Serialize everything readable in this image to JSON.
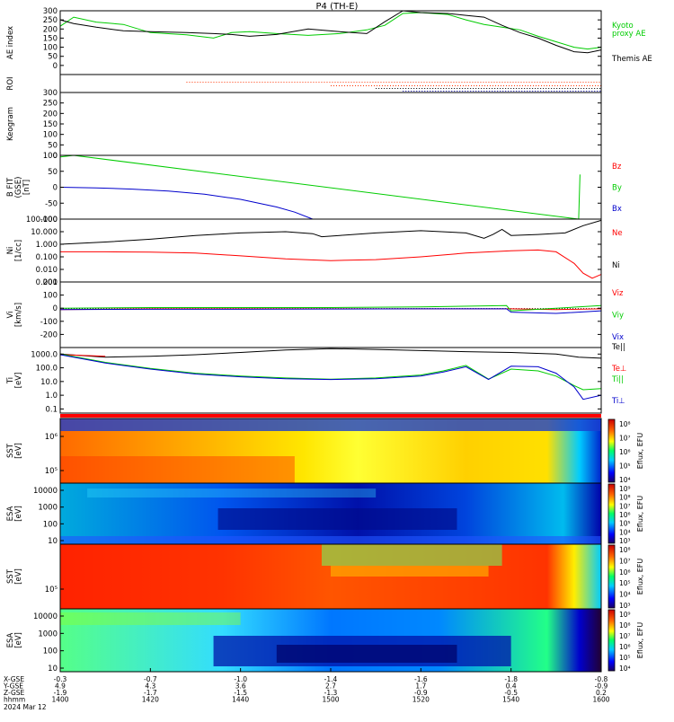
{
  "title": "P4 (TH-E)",
  "date_label": "2024 Mar 12",
  "chart_data": [
    {
      "type": "line",
      "id": "ae",
      "ylabel": "AE index",
      "ylim": [
        -50,
        300
      ],
      "yticks": [
        "300",
        "250",
        "200",
        "150",
        "100",
        "50",
        "0"
      ],
      "ytick_values": [
        300,
        250,
        200,
        150,
        100,
        50,
        0
      ],
      "xlim": [
        0,
        120
      ],
      "series": [
        {
          "name": "Kyoto\nproxy AE",
          "color": "#00cc00",
          "x": [
            0,
            3,
            8,
            14,
            20,
            28,
            34,
            38,
            42,
            48,
            55,
            62,
            68,
            72,
            76,
            80,
            86,
            90,
            94,
            98,
            102,
            106,
            110,
            114,
            117,
            120
          ],
          "y": [
            215,
            265,
            238,
            225,
            180,
            168,
            150,
            180,
            185,
            175,
            165,
            175,
            195,
            220,
            285,
            290,
            280,
            250,
            225,
            210,
            195,
            160,
            130,
            100,
            90,
            100
          ]
        },
        {
          "name": "Themis AE",
          "color": "#000000",
          "x": [
            0,
            3,
            8,
            14,
            20,
            28,
            34,
            38,
            42,
            48,
            55,
            62,
            68,
            72,
            76,
            80,
            86,
            90,
            94,
            98,
            102,
            106,
            110,
            114,
            117,
            120
          ],
          "y": [
            250,
            230,
            210,
            190,
            185,
            180,
            175,
            170,
            160,
            170,
            200,
            185,
            175,
            240,
            300,
            290,
            285,
            275,
            265,
            220,
            180,
            150,
            110,
            75,
            70,
            85
          ]
        }
      ]
    },
    {
      "type": "scatter",
      "id": "roi",
      "ylabel": "ROI"
    },
    {
      "type": "heatmap",
      "id": "keogram",
      "ylabel": "Keogram",
      "yticks": [
        "300",
        "250",
        "200",
        "150",
        "100",
        "50",
        "0"
      ],
      "ytick_values": [
        300,
        250,
        200,
        150,
        100,
        50,
        0
      ],
      "ylim": [
        0,
        300
      ]
    },
    {
      "type": "line",
      "id": "bfield",
      "ylabel": "B FIT\n(GSE)\n[nT]",
      "ylim": [
        -100,
        100
      ],
      "yticks": [
        "100",
        "50",
        "0",
        "-50",
        "-100"
      ],
      "ytick_values": [
        100,
        50,
        0,
        -50,
        -100
      ],
      "series": [
        {
          "name": "Bz",
          "color": "#ff0000",
          "x": [],
          "y": []
        },
        {
          "name": "By",
          "color": "#00cc00",
          "x": [
            0,
            3,
            115,
            115.3
          ],
          "y": [
            95,
            100,
            -100,
            40
          ]
        },
        {
          "name": "Bx",
          "color": "#0000cc",
          "x": [
            0,
            8,
            16,
            24,
            32,
            40,
            48,
            52,
            56
          ],
          "y": [
            0,
            -2,
            -6,
            -12,
            -22,
            -38,
            -62,
            -78,
            -100
          ]
        }
      ]
    },
    {
      "type": "line",
      "id": "density",
      "ylabel": "Ni\n[1/cc]",
      "scale": "log",
      "ylim": [
        0.001,
        100
      ],
      "yticks": [
        "100.000",
        "10.000",
        "1.000",
        "0.100",
        "0.010",
        "0.001"
      ],
      "ytick_values": [
        100,
        10,
        1,
        0.1,
        0.01,
        0.001
      ],
      "series": [
        {
          "name": "Ne",
          "color": "#ff0000",
          "x": [
            0,
            10,
            20,
            30,
            40,
            50,
            60,
            70,
            80,
            90,
            100,
            106,
            110,
            114,
            116,
            118,
            120
          ],
          "y": [
            0.25,
            0.25,
            0.24,
            0.2,
            0.12,
            0.07,
            0.05,
            0.06,
            0.1,
            0.2,
            0.3,
            0.35,
            0.25,
            0.03,
            0.005,
            0.002,
            0.004
          ]
        },
        {
          "name": "Ni",
          "color": "#000000",
          "x": [
            0,
            10,
            20,
            30,
            40,
            50,
            56,
            58,
            62,
            70,
            80,
            90,
            94,
            96,
            98,
            100,
            106,
            112,
            116,
            120
          ],
          "y": [
            1.0,
            1.5,
            2.5,
            5,
            8,
            10,
            7,
            4,
            5,
            8,
            12,
            8,
            3,
            6,
            15,
            5,
            6,
            8,
            30,
            80
          ]
        }
      ]
    },
    {
      "type": "line",
      "id": "velocity",
      "ylabel": "Vi\n[km/s]",
      "ylim": [
        -300,
        200
      ],
      "yticks": [
        "200",
        "100",
        "0",
        "-100",
        "-200"
      ],
      "ytick_values": [
        200,
        100,
        0,
        -100,
        -200
      ],
      "series": [
        {
          "name": "Viz",
          "color": "#ff0000",
          "x": [
            0,
            20,
            40,
            60,
            80,
            100,
            110,
            120
          ],
          "y": [
            -10,
            -5,
            -5,
            -5,
            -5,
            -5,
            -10,
            -5
          ]
        },
        {
          "name": "Viy",
          "color": "#00cc00",
          "x": [
            0,
            20,
            40,
            60,
            80,
            99,
            100,
            110,
            120
          ],
          "y": [
            0,
            5,
            5,
            5,
            10,
            20,
            -20,
            0,
            20
          ]
        },
        {
          "name": "Vix",
          "color": "#0000cc",
          "x": [
            0,
            20,
            40,
            60,
            80,
            99,
            100,
            110,
            120
          ],
          "y": [
            -10,
            -8,
            -8,
            -6,
            -5,
            -5,
            -30,
            -40,
            -20
          ]
        }
      ]
    },
    {
      "type": "line",
      "id": "temperature",
      "ylabel": "Ti\n[eV]",
      "scale": "log",
      "ylim": [
        0.05,
        3000
      ],
      "yticks": [
        "1000.0",
        "100.0",
        "10.0",
        "1.0",
        "0.1"
      ],
      "ytick_values": [
        1000,
        100,
        10,
        1,
        0.1
      ],
      "series": [
        {
          "name": "Te||",
          "color": "#000000",
          "x": [
            0,
            10,
            20,
            30,
            40,
            50,
            60,
            70,
            80,
            90,
            100,
            110,
            115,
            120
          ],
          "y": [
            1000,
            600,
            700,
            900,
            1300,
            2000,
            2500,
            2200,
            1800,
            1500,
            1300,
            1000,
            600,
            500
          ]
        },
        {
          "name": "Te⊥",
          "color": "#ff0000",
          "x": [
            0,
            5,
            10
          ],
          "y": [
            900,
            800,
            700
          ]
        },
        {
          "name": "Ti||",
          "color": "#00cc00",
          "x": [
            0,
            10,
            20,
            30,
            40,
            50,
            60,
            70,
            80,
            85,
            90,
            95,
            100,
            106,
            110,
            114,
            116,
            120
          ],
          "y": [
            1000,
            250,
            90,
            40,
            25,
            18,
            15,
            18,
            30,
            60,
            150,
            15,
            80,
            60,
            25,
            5,
            2.5,
            3
          ]
        },
        {
          "name": "Ti⊥",
          "color": "#0000cc",
          "x": [
            0,
            10,
            20,
            30,
            40,
            50,
            60,
            70,
            80,
            85,
            90,
            95,
            100,
            106,
            110,
            114,
            116,
            120
          ],
          "y": [
            900,
            220,
            80,
            35,
            22,
            16,
            14,
            16,
            25,
            50,
            120,
            14,
            130,
            120,
            40,
            4,
            0.5,
            1
          ]
        }
      ]
    },
    {
      "type": "heatmap",
      "id": "sst-ion",
      "ylabel": "SST\n[eV]",
      "yticks": [
        "10⁶",
        "10⁵"
      ],
      "ytick_values": [
        1000000,
        100000
      ],
      "colorbar": {
        "label": "Eflux, EFU",
        "ticks": [
          "10⁸",
          "10⁷",
          "10⁶",
          "10⁵",
          "10⁴"
        ]
      }
    },
    {
      "type": "heatmap",
      "id": "esa-ion",
      "ylabel": "ESA\n[eV]",
      "yticks": [
        "10000",
        "1000",
        "100",
        "10"
      ],
      "ytick_values": [
        10000,
        1000,
        100,
        10
      ],
      "colorbar": {
        "label": "Eflux, EFU",
        "ticks": [
          "10⁹",
          "10⁸",
          "10⁷",
          "10⁶",
          "10⁵",
          "10⁴",
          "10³"
        ]
      }
    },
    {
      "type": "heatmap",
      "id": "sst-elec",
      "ylabel": "SST\n[eV]",
      "yticks": [
        "10⁵"
      ],
      "ytick_values": [
        100000
      ],
      "colorbar": {
        "label": "Eflux, EFU",
        "ticks": [
          "10⁸",
          "10⁷",
          "10⁶",
          "10⁵",
          "10⁴",
          "10³"
        ]
      }
    },
    {
      "type": "heatmap",
      "id": "esa-elec",
      "ylabel": "ESA\n[eV]",
      "yticks": [
        "10000",
        "1000",
        "100",
        "10"
      ],
      "ytick_values": [
        10000,
        1000,
        100,
        10
      ],
      "colorbar": {
        "label": "Eflux, EFU",
        "ticks": [
          "10⁹",
          "10⁸",
          "10⁷",
          "10⁶",
          "10⁵",
          "10⁴"
        ]
      }
    }
  ],
  "xaxis": {
    "row_labels": [
      "X-GSE",
      "Y-GSE",
      "Z-GSE",
      "hhmm"
    ],
    "columns": [
      {
        "vals": [
          "-0.3",
          "4.9",
          "-1.9",
          "1400"
        ]
      },
      {
        "vals": [
          "-0.7",
          "4.3",
          "-1.7",
          "1420"
        ]
      },
      {
        "vals": [
          "-1.0",
          "3.6",
          "-1.5",
          "1440"
        ]
      },
      {
        "vals": [
          "-1.4",
          "2.7",
          "-1.3",
          "1500"
        ]
      },
      {
        "vals": [
          "-1.6",
          "1.7",
          "-0.9",
          "1520"
        ]
      },
      {
        "vals": [
          "-1.8",
          "0.4",
          "-0.5",
          "1540"
        ]
      },
      {
        "vals": [
          "-0.8",
          "-0.9",
          "0.2",
          "1600"
        ]
      }
    ]
  }
}
